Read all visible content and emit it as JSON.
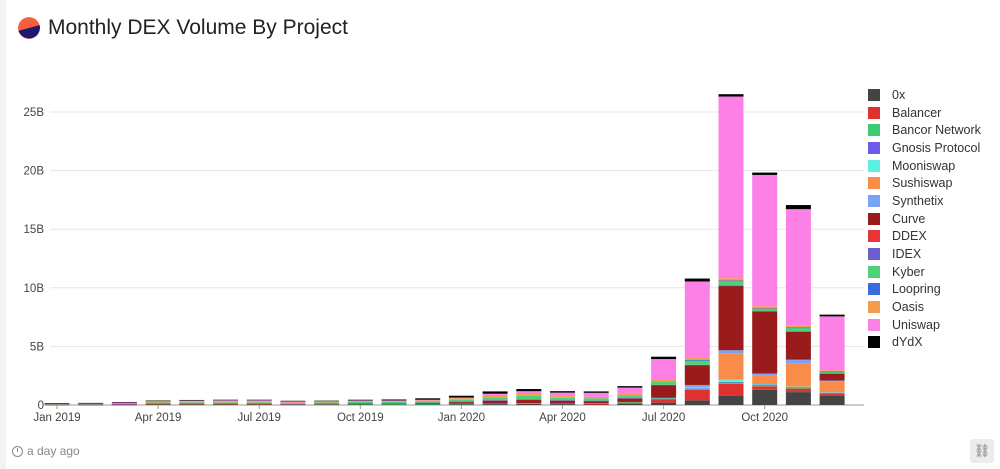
{
  "header": {
    "title": "Monthly DEX Volume By Project",
    "logo_icon": "dune-logo-icon"
  },
  "footer": {
    "updated": "a day ago",
    "link_icon": "link-icon"
  },
  "chart_data": {
    "type": "bar",
    "stacked": true,
    "title": "Monthly DEX Volume By Project",
    "xlabel": "",
    "ylabel": "",
    "ylim": [
      0,
      27000000000
    ],
    "y_ticks": [
      "0",
      "5B",
      "10B",
      "15B",
      "20B",
      "25B"
    ],
    "x_ticks": [
      {
        "label": "Jan 2019",
        "index": 0
      },
      {
        "label": "Apr 2019",
        "index": 3
      },
      {
        "label": "Jul 2019",
        "index": 6
      },
      {
        "label": "Oct 2019",
        "index": 9
      },
      {
        "label": "Jan 2020",
        "index": 12
      },
      {
        "label": "Apr 2020",
        "index": 15
      },
      {
        "label": "Jul 2020",
        "index": 18
      },
      {
        "label": "Oct 2020",
        "index": 21
      }
    ],
    "grid": true,
    "legend_position": "right",
    "categories": [
      "2019-01",
      "2019-02",
      "2019-03",
      "2019-04",
      "2019-05",
      "2019-06",
      "2019-07",
      "2019-08",
      "2019-09",
      "2019-10",
      "2019-11",
      "2019-12",
      "2020-01",
      "2020-02",
      "2020-03",
      "2020-04",
      "2020-05",
      "2020-06",
      "2020-07",
      "2020-08",
      "2020-09",
      "2020-10",
      "2020-11",
      "2020-12"
    ],
    "series": [
      {
        "name": "0x",
        "color": "#444444",
        "values": [
          0.02,
          0.02,
          0.03,
          0.05,
          0.05,
          0.05,
          0.05,
          0.04,
          0.05,
          0.06,
          0.05,
          0.06,
          0.08,
          0.08,
          0.1,
          0.08,
          0.07,
          0.1,
          0.2,
          0.4,
          0.8,
          1.3,
          1.1,
          0.8
        ]
      },
      {
        "name": "Balancer",
        "color": "#e03131",
        "values": [
          0,
          0,
          0,
          0,
          0,
          0,
          0,
          0,
          0,
          0,
          0,
          0,
          0,
          0,
          0,
          0,
          0.02,
          0.1,
          0.3,
          0.9,
          1.0,
          0.3,
          0.3,
          0.2
        ]
      },
      {
        "name": "Bancor Network",
        "color": "#40c972",
        "values": [
          0.02,
          0.02,
          0.02,
          0.03,
          0.03,
          0.03,
          0.03,
          0.02,
          0.02,
          0.03,
          0.03,
          0.03,
          0.03,
          0.05,
          0.05,
          0.05,
          0.05,
          0.06,
          0.06,
          0.1,
          0.15,
          0.12,
          0.1,
          0.06
        ]
      },
      {
        "name": "Gnosis Protocol",
        "color": "#6c5ce7",
        "values": [
          0,
          0,
          0,
          0,
          0,
          0,
          0,
          0,
          0,
          0,
          0,
          0,
          0,
          0,
          0,
          0,
          0,
          0,
          0,
          0.01,
          0.02,
          0.02,
          0.02,
          0.01
        ]
      },
      {
        "name": "Mooniswap",
        "color": "#5df0e0",
        "values": [
          0,
          0,
          0,
          0,
          0,
          0,
          0,
          0,
          0,
          0,
          0,
          0,
          0,
          0,
          0,
          0,
          0,
          0,
          0,
          0.1,
          0.2,
          0.05,
          0.05,
          0.02
        ]
      },
      {
        "name": "Sushiswap",
        "color": "#fa8c4a",
        "values": [
          0,
          0,
          0,
          0,
          0,
          0,
          0,
          0,
          0,
          0,
          0,
          0,
          0,
          0,
          0,
          0,
          0,
          0,
          0,
          0,
          2.2,
          0.7,
          2.0,
          0.9
        ]
      },
      {
        "name": "Synthetix",
        "color": "#7aa3f5",
        "values": [
          0,
          0,
          0,
          0,
          0,
          0,
          0,
          0,
          0,
          0,
          0,
          0,
          0,
          0,
          0,
          0,
          0,
          0,
          0.05,
          0.2,
          0.3,
          0.2,
          0.3,
          0.1
        ]
      },
      {
        "name": "Curve",
        "color": "#9a1b1b",
        "values": [
          0.01,
          0.01,
          0.01,
          0.02,
          0.02,
          0.02,
          0.02,
          0.02,
          0.03,
          0.04,
          0.05,
          0.08,
          0.15,
          0.25,
          0.3,
          0.25,
          0.2,
          0.3,
          1.1,
          1.7,
          5.5,
          5.3,
          2.4,
          0.6
        ]
      },
      {
        "name": "DDEX",
        "color": "#e8353a",
        "values": [
          0.01,
          0.01,
          0.01,
          0.01,
          0.01,
          0.01,
          0.01,
          0.01,
          0.01,
          0.01,
          0.01,
          0.01,
          0.01,
          0.01,
          0.01,
          0.01,
          0.01,
          0.01,
          0,
          0,
          0,
          0,
          0,
          0
        ]
      },
      {
        "name": "IDEX",
        "color": "#6b5fd0",
        "values": [
          0.01,
          0.01,
          0.02,
          0.02,
          0.02,
          0.02,
          0.02,
          0.01,
          0.01,
          0.02,
          0.02,
          0.02,
          0.02,
          0.02,
          0.02,
          0.02,
          0.02,
          0.02,
          0.01,
          0.01,
          0.02,
          0.02,
          0.02,
          0.01
        ]
      },
      {
        "name": "Kyber",
        "color": "#4fd07a",
        "values": [
          0.02,
          0.03,
          0.05,
          0.08,
          0.1,
          0.1,
          0.1,
          0.08,
          0.1,
          0.12,
          0.12,
          0.12,
          0.15,
          0.25,
          0.3,
          0.2,
          0.2,
          0.25,
          0.3,
          0.4,
          0.4,
          0.2,
          0.3,
          0.15
        ]
      },
      {
        "name": "Loopring",
        "color": "#3b6be0",
        "values": [
          0,
          0,
          0,
          0,
          0,
          0,
          0,
          0,
          0,
          0,
          0,
          0,
          0,
          0,
          0,
          0,
          0,
          0,
          0,
          0.02,
          0.03,
          0.02,
          0.02,
          0.01
        ]
      },
      {
        "name": "Oasis",
        "color": "#f39c4a",
        "values": [
          0.03,
          0.03,
          0.03,
          0.05,
          0.05,
          0.05,
          0.05,
          0.04,
          0.05,
          0.06,
          0.06,
          0.08,
          0.15,
          0.2,
          0.2,
          0.15,
          0.12,
          0.15,
          0.2,
          0.2,
          0.2,
          0.2,
          0.2,
          0.1
        ]
      },
      {
        "name": "Uniswap",
        "color": "#fc80e6",
        "values": [
          0.02,
          0.03,
          0.05,
          0.08,
          0.1,
          0.12,
          0.12,
          0.1,
          0.05,
          0.05,
          0.05,
          0.05,
          0.05,
          0.1,
          0.2,
          0.3,
          0.35,
          0.5,
          1.7,
          6.5,
          15.5,
          11.2,
          9.9,
          4.6
        ]
      },
      {
        "name": "dYdX",
        "color": "#000000",
        "values": [
          0.02,
          0.02,
          0.03,
          0.04,
          0.05,
          0.05,
          0.05,
          0.04,
          0.05,
          0.06,
          0.08,
          0.12,
          0.15,
          0.2,
          0.18,
          0.12,
          0.12,
          0.12,
          0.2,
          0.25,
          0.2,
          0.2,
          0.35,
          0.15
        ]
      }
    ],
    "value_unit": "billions"
  }
}
